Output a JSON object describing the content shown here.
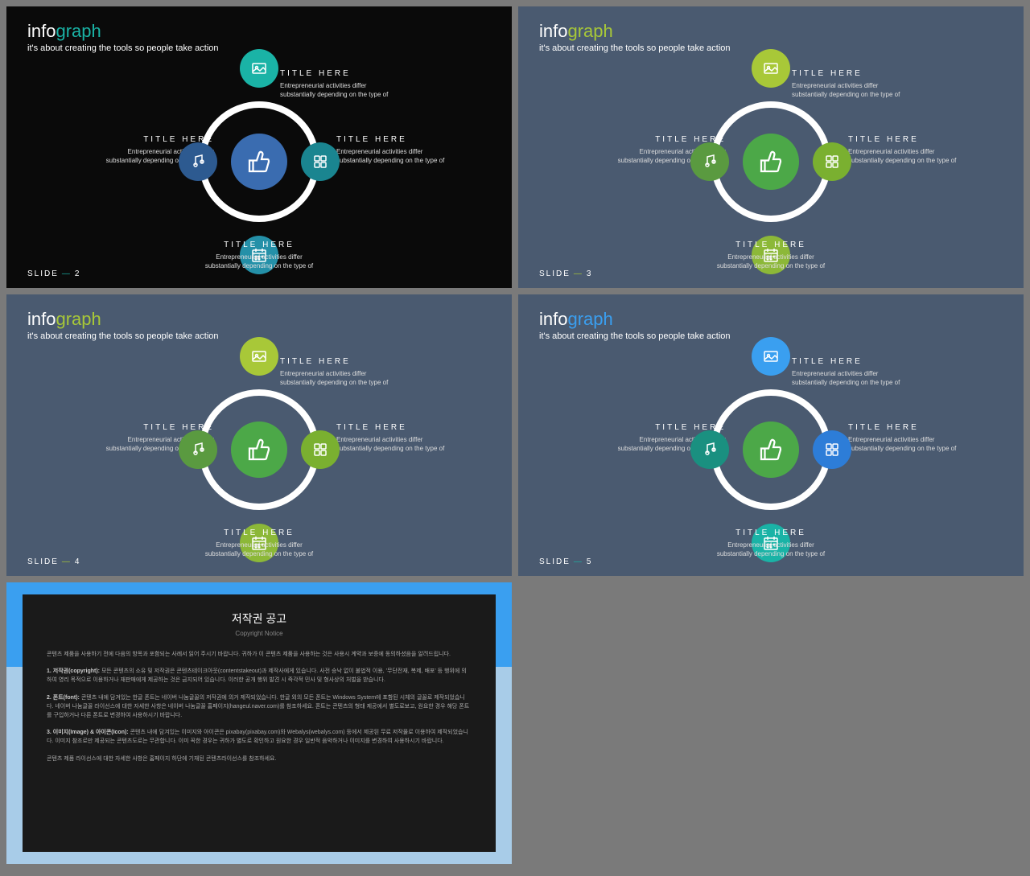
{
  "common": {
    "title_part1": "info",
    "title_part2": "graph",
    "subtitle": "it's about creating the tools so people take action",
    "slide_label": "SLIDE",
    "node_title": "TITLE HERE",
    "node_desc": "Entrepreneurial activities differ substantially depending on the type of"
  },
  "slides": [
    {
      "num": "2",
      "bg": "#0a0a0a",
      "title1_color": "#ffffff",
      "title2_color": "#1ab3a6",
      "dash_color": "#1ab3a6",
      "center_color": "#3a6cb0",
      "top_color": "#1ab3a6",
      "right_color": "#1a8590",
      "bottom_color": "#2490a8",
      "left_color": "#2d5a90"
    },
    {
      "num": "3",
      "bg": "#4a5a70",
      "title1_color": "#ffffff",
      "title2_color": "#a8c838",
      "dash_color": "#a8c838",
      "center_color": "#4ca848",
      "top_color": "#a8c838",
      "right_color": "#7ab030",
      "bottom_color": "#8cb838",
      "left_color": "#5a9a40"
    },
    {
      "num": "4",
      "bg": "#4a5a70",
      "title1_color": "#ffffff",
      "title2_color": "#a8c838",
      "dash_color": "#a8c838",
      "center_color": "#4ca848",
      "top_color": "#a8c838",
      "right_color": "#7ab030",
      "bottom_color": "#8cb838",
      "left_color": "#5a9a40"
    },
    {
      "num": "5",
      "bg": "#4a5a70",
      "title1_color": "#ffffff",
      "title2_color": "#3a9ff0",
      "dash_color": "#1ab3a6",
      "center_color": "#4ca848",
      "top_color": "#3a9ff0",
      "right_color": "#2d7dd8",
      "bottom_color": "#1ab3a6",
      "left_color": "#1a9080"
    }
  ],
  "copyright": {
    "title": "저작권 공고",
    "sub": "Copyright Notice",
    "p1": "콘텐츠 제품을 사용하기 전에 다음의 항목과 포함되는 사례서 읽어 주시기 바랍니다. 귀하가 이 콘텐츠 제품을 사용하는 것은 사용시 계약과 보증에 동의하셨음을 알려드립니다.",
    "p2_label": "1. 저작권(copyright):",
    "p2": "모든 콘텐츠의 소유 및 저작권은 콘텐츠테이크아웃(contentstakeout)과 제작사에게 있습니다. 사전 승낙 없이 불법적 이용, '무단전재, 복제, 배포' 등 행위에 의하여 영리 목적으로 이용하거나 재판매에게 제공하는 것은 금지되어 있습니다. 이러한 공개 행위 발견 시 즉각적 민사 및 형사상의 처벌을 받습니다.",
    "p3_label": "2. 폰트(font):",
    "p3": "콘텐츠 내에 담겨있는 한글 폰트는 네이버 나눔글꼴의 저작권에 의거 제작되었습니다. 한글 외의 모든 폰트는 Windows System에 포함된 시체의 글꼴로 제작되었습니다. 네이버 나눔글꼴 라이선스에 대한 자세한 사항은 네이버 나눔글꼴 홈페이지(hangeul.naver.com)를 참조하세요. 폰트는 콘텐츠의 형태 제공에서 별도로보고, 원요한 경우 해당 폰트를 구입하거나 다른 폰트로 변경하여 사용하시기 바랍니다.",
    "p4_label": "3. 이미지(Image) & 아이콘(Icon):",
    "p4": "콘텐츠 내에 담겨있는 이미지와 아이콘은 pixabay(pixabay.com)와 Webalys(webalys.com) 등에서 제공된 무료 저작물로 이용하여 제작되었습니다. 이미지 참조로만 제공되는 콘텐츠도로는 무관합니다. 이미 꼭한 경우는 귀하가 별도로 확인하고 원요한 경우 일반적 음악하거나 이미지를 변경하여 사용하시기 바랍니다.",
    "p5": "콘텐츠 제품 라이선스에 대한 자세한 사항은 홈페이지 하단에 기재된 콘텐츠라이선스를 참조하세요."
  }
}
